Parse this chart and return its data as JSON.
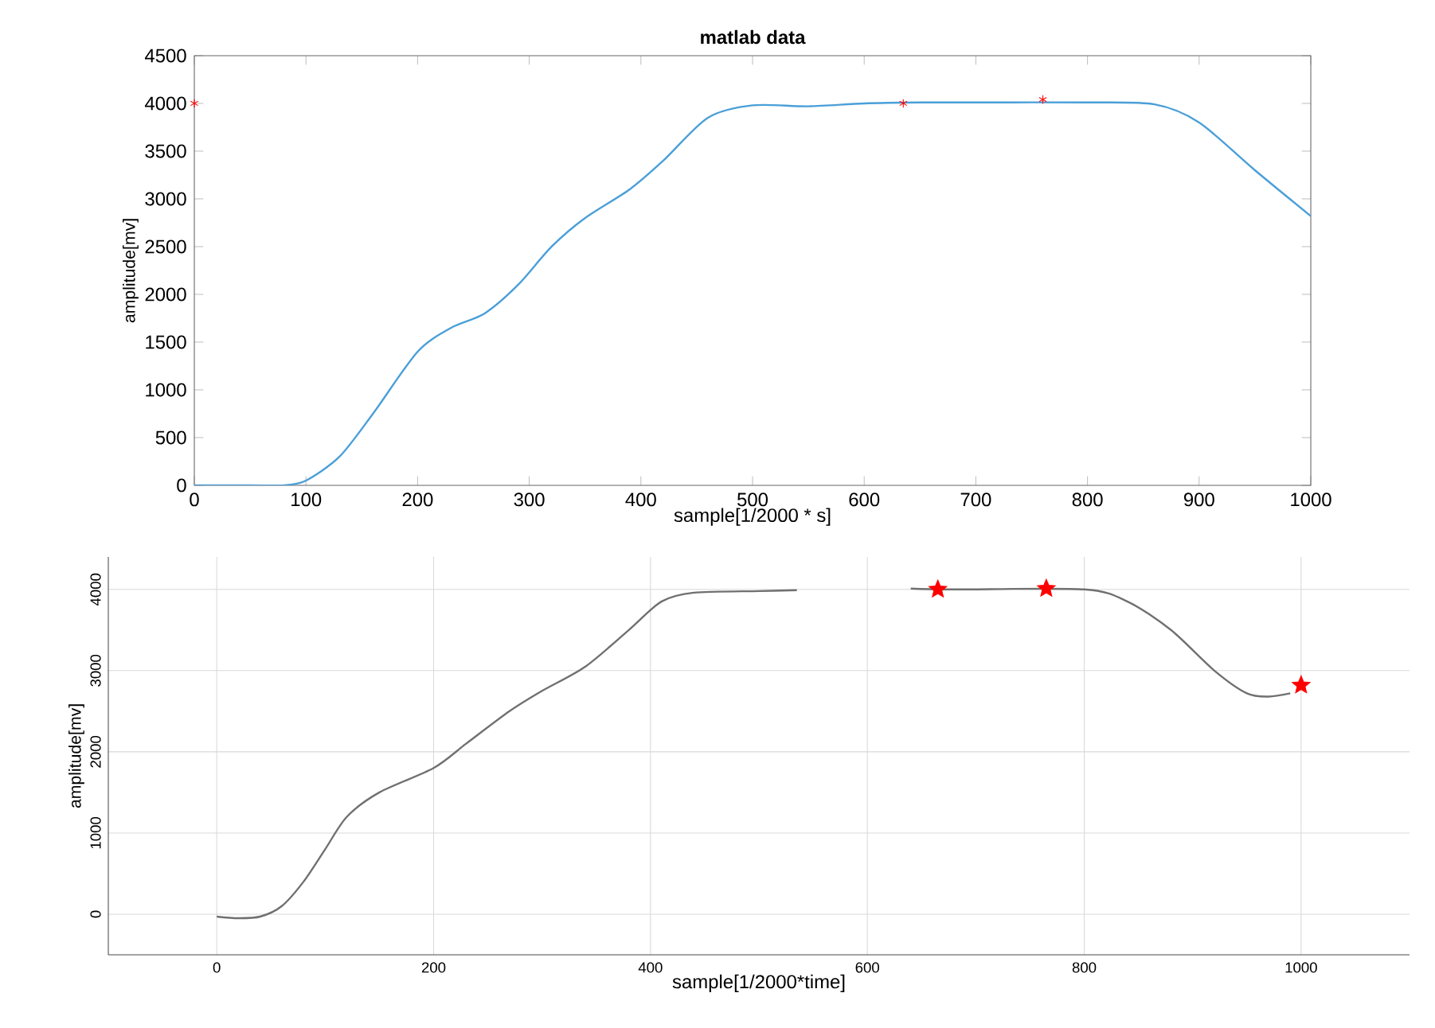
{
  "chart_data": [
    {
      "type": "line",
      "title": "matlab data",
      "xlabel": "sample[1/2000 * s]",
      "ylabel": "amplitude[mv]",
      "xlim": [
        0,
        1000
      ],
      "ylim": [
        0,
        4500
      ],
      "xticks": [
        0,
        100,
        200,
        300,
        400,
        500,
        600,
        700,
        800,
        900,
        1000
      ],
      "yticks": [
        0,
        500,
        1000,
        1500,
        2000,
        2500,
        3000,
        3500,
        4000,
        4500
      ],
      "grid": false,
      "series": [
        {
          "color": "#4a9fd8",
          "x": [
            0,
            50,
            80,
            100,
            130,
            160,
            200,
            230,
            260,
            290,
            320,
            350,
            390,
            420,
            460,
            500,
            550,
            600,
            650,
            700,
            800,
            860,
            900,
            950,
            1000
          ],
          "values": [
            0,
            0,
            0,
            50,
            300,
            750,
            1400,
            1650,
            1800,
            2100,
            2500,
            2800,
            3100,
            3400,
            3850,
            3980,
            3970,
            4000,
            4010,
            4010,
            4010,
            3990,
            3800,
            3300,
            2820
          ]
        },
        {
          "type": "scatter",
          "marker": "cross",
          "color": "#ff0000",
          "x": [
            0,
            635,
            760
          ],
          "values": [
            4000,
            4000,
            4040
          ]
        }
      ]
    },
    {
      "type": "line",
      "xlabel": "sample[1/2000*time]",
      "ylabel": "amplitude[mv]",
      "xlim": [
        -100,
        1100
      ],
      "ylim": [
        -500,
        4400
      ],
      "xticks": [
        0,
        200,
        400,
        600,
        800,
        1000
      ],
      "yticks": [
        0,
        1000,
        2000,
        3000,
        4000
      ],
      "grid": true,
      "series": [
        {
          "color": "#707070",
          "x": [
            0,
            20,
            40,
            60,
            80,
            100,
            120,
            150,
            200,
            230,
            270,
            300,
            340,
            380,
            410,
            440,
            500,
            535,
            590,
            640,
            680,
            800,
            840,
            880,
            920,
            950,
            970,
            990
          ],
          "values": [
            -30,
            -50,
            -30,
            100,
            400,
            800,
            1200,
            1500,
            1800,
            2100,
            2500,
            2750,
            3050,
            3500,
            3850,
            3960,
            3980,
            3990,
            null,
            4010,
            4000,
            4000,
            3850,
            3500,
            3000,
            2720,
            2680,
            2720
          ]
        },
        {
          "type": "scatter",
          "marker": "star",
          "color": "#ff0000",
          "x": [
            665,
            765,
            1000
          ],
          "values": [
            4000,
            4010,
            2820
          ]
        }
      ]
    }
  ]
}
